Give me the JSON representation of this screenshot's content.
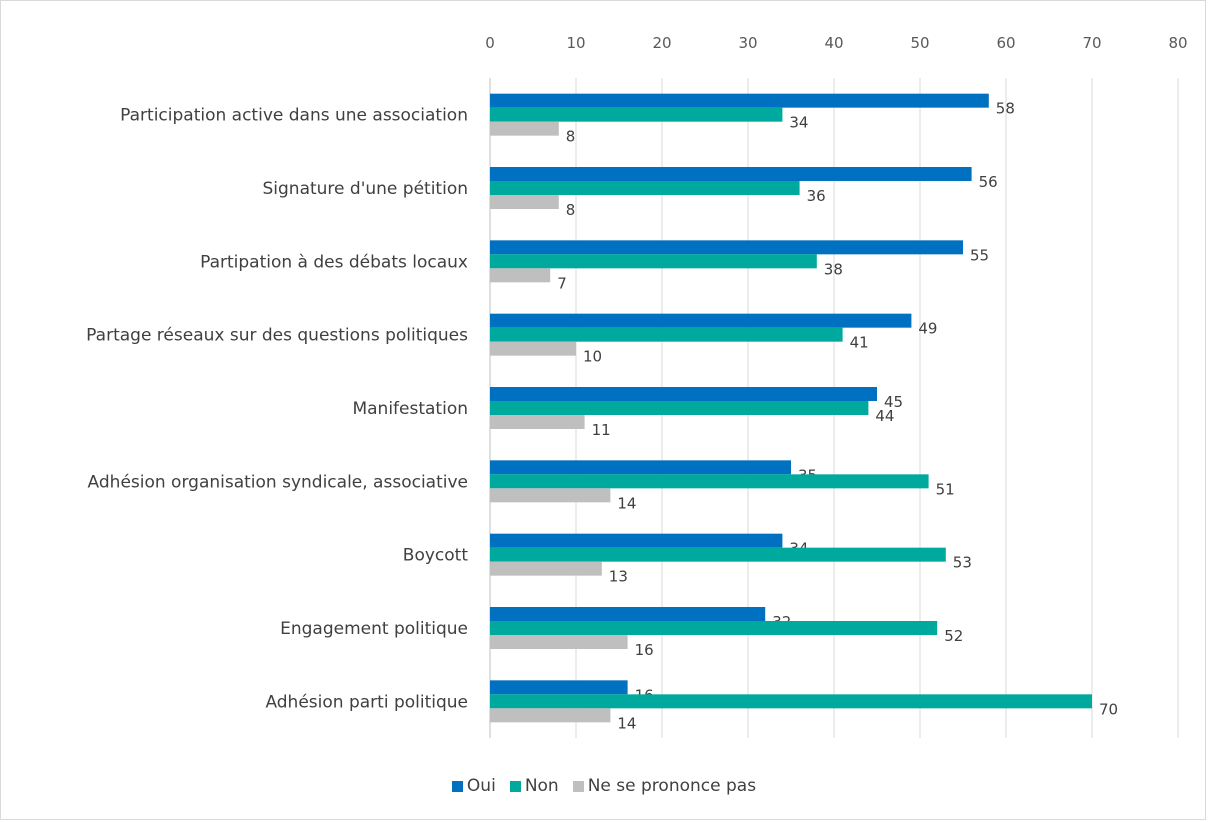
{
  "chart_data": {
    "type": "bar",
    "orientation": "horizontal",
    "categories": [
      "Participation active dans une association",
      "Signature d'une pétition",
      "Partipation à des débats locaux",
      "Partage réseaux sur des questions politiques",
      "Manifestation",
      "Adhésion organisation syndicale, associative",
      "Boycott",
      "Engagement politique",
      "Adhésion parti politique"
    ],
    "series": [
      {
        "name": "Oui",
        "color": "#0070C0",
        "values": [
          58,
          56,
          55,
          49,
          45,
          35,
          34,
          32,
          16
        ]
      },
      {
        "name": "Non",
        "color": "#00A99D",
        "values": [
          34,
          36,
          38,
          41,
          44,
          51,
          53,
          52,
          70
        ]
      },
      {
        "name": "Ne se prononce pas",
        "color": "#BFBFBF",
        "values": [
          8,
          8,
          7,
          10,
          11,
          14,
          13,
          16,
          14
        ]
      }
    ],
    "xlim": [
      0,
      80
    ],
    "x_ticks": [
      "0",
      "10",
      "20",
      "30",
      "40",
      "50",
      "60",
      "70",
      "80"
    ],
    "x_axis_position": "top",
    "grid": true,
    "legend_position": "bottom",
    "data_labels": true
  }
}
